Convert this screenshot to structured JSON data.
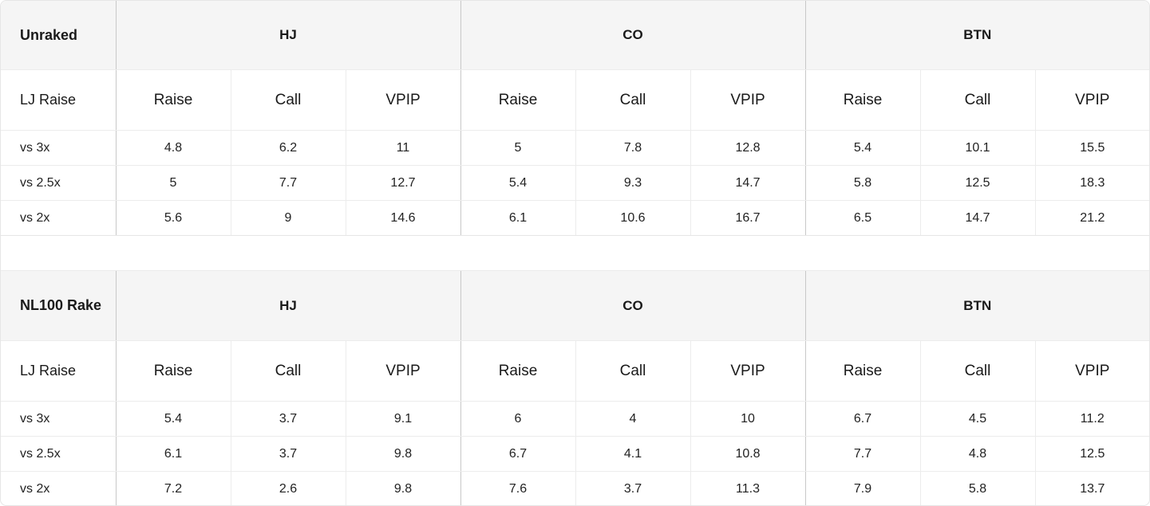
{
  "tables": [
    {
      "title": "Unraked",
      "positions": [
        "HJ",
        "CO",
        "BTN"
      ],
      "row_header": "LJ Raise",
      "sub_headers": [
        "Raise",
        "Call",
        "VPIP"
      ],
      "rows": [
        {
          "label": "vs 3x",
          "values": [
            "4.8",
            "6.2",
            "11",
            "5",
            "7.8",
            "12.8",
            "5.4",
            "10.1",
            "15.5"
          ]
        },
        {
          "label": "vs 2.5x",
          "values": [
            "5",
            "7.7",
            "12.7",
            "5.4",
            "9.3",
            "14.7",
            "5.8",
            "12.5",
            "18.3"
          ]
        },
        {
          "label": "vs 2x",
          "values": [
            "5.6",
            "9",
            "14.6",
            "6.1",
            "10.6",
            "16.7",
            "6.5",
            "14.7",
            "21.2"
          ]
        }
      ]
    },
    {
      "title": "NL100 Rake",
      "positions": [
        "HJ",
        "CO",
        "BTN"
      ],
      "row_header": "LJ Raise",
      "sub_headers": [
        "Raise",
        "Call",
        "VPIP"
      ],
      "rows": [
        {
          "label": "vs 3x",
          "values": [
            "5.4",
            "3.7",
            "9.1",
            "6",
            "4",
            "10",
            "6.7",
            "4.5",
            "11.2"
          ]
        },
        {
          "label": "vs 2.5x",
          "values": [
            "6.1",
            "3.7",
            "9.8",
            "6.7",
            "4.1",
            "10.8",
            "7.7",
            "4.8",
            "12.5"
          ]
        },
        {
          "label": "vs 2x",
          "values": [
            "7.2",
            "2.6",
            "9.8",
            "7.6",
            "3.7",
            "11.3",
            "7.9",
            "5.8",
            "13.7"
          ]
        }
      ]
    }
  ]
}
